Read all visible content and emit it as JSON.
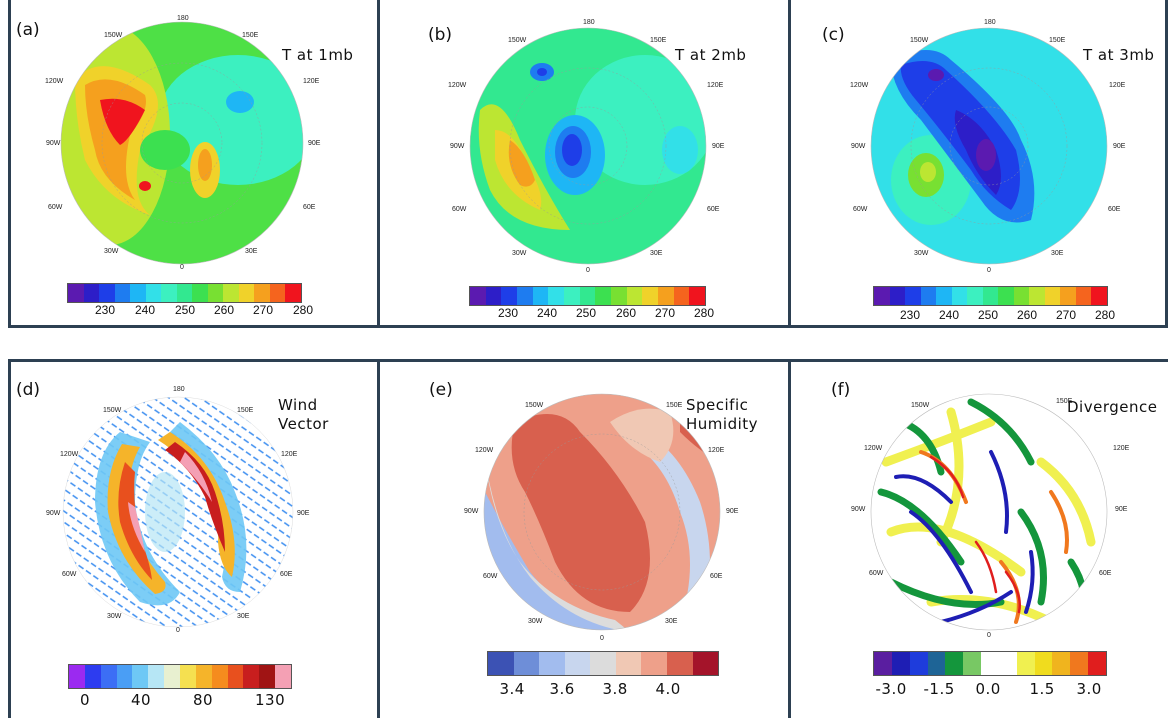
{
  "panels": {
    "a": {
      "label": "(a)",
      "title": "T at 1mb"
    },
    "b": {
      "label": "(b)",
      "title": "T at 2mb"
    },
    "c": {
      "label": "(c)",
      "title": "T at 3mb"
    },
    "d": {
      "label": "(d)",
      "title_line1": "Wind",
      "title_line2": "Vector"
    },
    "e": {
      "label": "(e)",
      "title_line1": "Specific",
      "title_line2": "Humidity"
    },
    "f": {
      "label": "(f)",
      "title": "Divergence"
    }
  },
  "axis_labels": {
    "top": "180",
    "left_upper": "120W",
    "upper_left": "150W",
    "upper_right": "150E",
    "right_upper": "120E",
    "left": "90W",
    "right": "90E",
    "left_lower": "60W",
    "right_lower": "60E",
    "lower_left": "30W",
    "lower_right": "30E",
    "bottom": "0"
  },
  "colorbars": {
    "temperature": {
      "ticks": [
        "230",
        "240",
        "250",
        "260",
        "270",
        "280"
      ],
      "colors": [
        "#5b1ab0",
        "#2d1ec8",
        "#1e3ee8",
        "#1e7cf0",
        "#1eb6f5",
        "#32e0e8",
        "#3cf0c0",
        "#32e890",
        "#3ce050",
        "#78e032",
        "#bce632",
        "#f0d22a",
        "#f5a01e",
        "#f5641e",
        "#f0141e"
      ]
    },
    "wind": {
      "ticks": [
        "0",
        "40",
        "80",
        "130"
      ],
      "colors": [
        "#9b2af0",
        "#2d3cf0",
        "#3c6ef5",
        "#4a9ef5",
        "#6ec8f5",
        "#b6e6f5",
        "#e8f0d0",
        "#f5e050",
        "#f5b42a",
        "#f58c1e",
        "#e8501e",
        "#c81e1e",
        "#a01414",
        "#f4a0b4"
      ]
    },
    "humidity": {
      "ticks": [
        "3.4",
        "3.6",
        "3.8",
        "4.0"
      ],
      "colors": [
        "#3c52b4",
        "#6e8ed8",
        "#a2bcee",
        "#c8d6ee",
        "#dcdcdc",
        "#f0c8b4",
        "#eea08a",
        "#d8604e",
        "#a4142a"
      ]
    },
    "divergence": {
      "ticks": [
        "-3.0",
        "-1.5",
        "0.0",
        "1.5",
        "3.0"
      ],
      "colors": [
        "#5a1ea0",
        "#1e1eb4",
        "#1e3cdc",
        "#1e6496",
        "#14963c",
        "#78c864",
        "#ffffff",
        "#ffffff",
        "#f0f050",
        "#f0dc1e",
        "#f0b41e",
        "#f0781e",
        "#e01e1e"
      ]
    }
  },
  "colors": {
    "panel_border": "#2d4052"
  }
}
